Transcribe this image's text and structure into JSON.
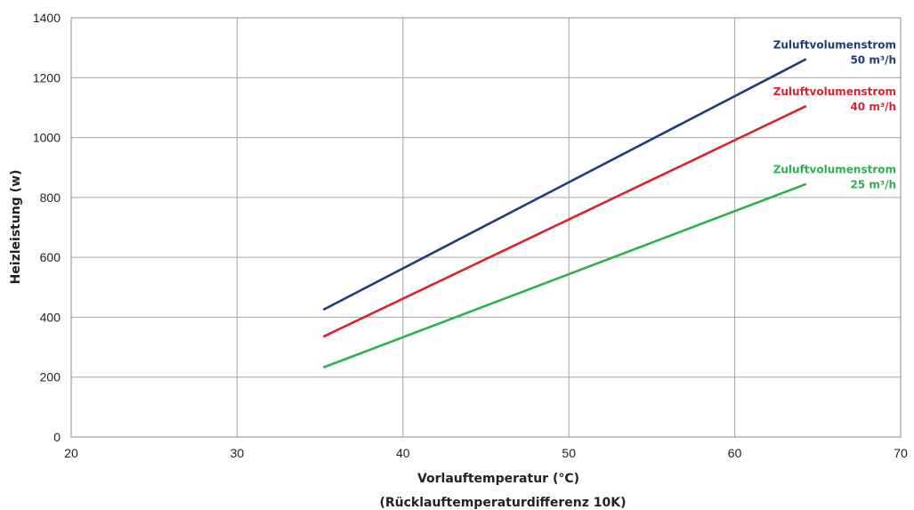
{
  "chart_data": {
    "type": "line",
    "xlabel": "Vorlauftemperatur (°C)",
    "xlabel_note": "(Rücklauftemperaturdifferenz 10K)",
    "ylabel": "Heizleistung (w)",
    "xlim": [
      20,
      70
    ],
    "ylim": [
      0,
      1400
    ],
    "xticks": [
      20,
      30,
      40,
      50,
      60,
      70
    ],
    "yticks": [
      0,
      200,
      400,
      600,
      800,
      1000,
      1200,
      1400
    ],
    "grid": true,
    "legend": "inline labels at line ends (right)",
    "series": [
      {
        "name": "Zuluftvolumenstrom",
        "label_line2": "50 m³/h",
        "color": "#1f3d7a",
        "x": [
          35.2,
          64.3
        ],
        "y": [
          425,
          1262
        ]
      },
      {
        "name": "Zuluftvolumenstrom",
        "label_line2": "40 m³/h",
        "color": "#d8232f",
        "x": [
          35.2,
          64.3
        ],
        "y": [
          335,
          1105
        ]
      },
      {
        "name": "Zuluftvolumenstrom",
        "label_line2": "25 m³/h",
        "color": "#2fb04e",
        "x": [
          35.2,
          64.3
        ],
        "y": [
          232,
          845
        ]
      }
    ]
  }
}
